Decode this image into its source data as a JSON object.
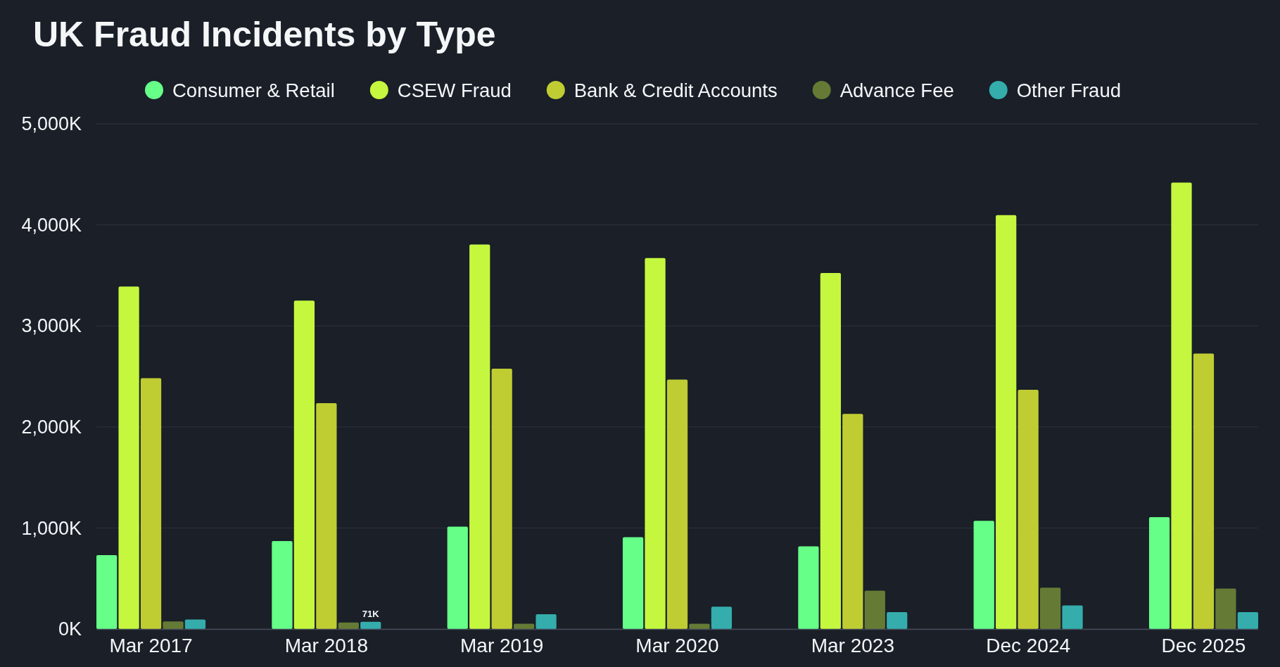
{
  "chart_data": {
    "type": "bar",
    "title": "UK Fraud Incidents by Type",
    "categories": [
      "Mar 2017",
      "Mar 2018",
      "Mar 2019",
      "Mar 2020",
      "Mar 2023",
      "Dec 2024",
      "Dec 2025"
    ],
    "series": [
      {
        "name": "Consumer & Retail",
        "color": "#66ff88",
        "values": [
          732,
          871,
          1014,
          908,
          818,
          1071,
          1108
        ]
      },
      {
        "name": "CSEW Fraud",
        "color": "#c5f73f",
        "values": [
          3389,
          3250,
          3806,
          3671,
          3524,
          4096,
          4419
        ]
      },
      {
        "name": "Bank & Credit Accounts",
        "color": "#bfcd33",
        "values": [
          2482,
          2236,
          2576,
          2469,
          2130,
          2367,
          2727
        ]
      },
      {
        "name": "Advance Fee",
        "color": "#657b35",
        "values": [
          74,
          65,
          53,
          53,
          380,
          409,
          401
        ]
      },
      {
        "name": "Other Fraud",
        "color": "#34adac",
        "values": [
          94,
          71,
          147,
          221,
          168,
          233,
          168
        ],
        "value_labels": [
          null,
          "71K",
          null,
          null,
          null,
          null,
          null
        ]
      }
    ],
    "ylim": [
      0,
      5000
    ],
    "yticks": [
      {
        "value": 0,
        "label": "0K"
      },
      {
        "value": 1000,
        "label": "1,000K"
      },
      {
        "value": 2000,
        "label": "2,000K"
      },
      {
        "value": 3000,
        "label": "3,000K"
      },
      {
        "value": 4000,
        "label": "4,000K"
      },
      {
        "value": 5000,
        "label": "5,000K"
      }
    ],
    "grid": "y",
    "legend": "top"
  }
}
